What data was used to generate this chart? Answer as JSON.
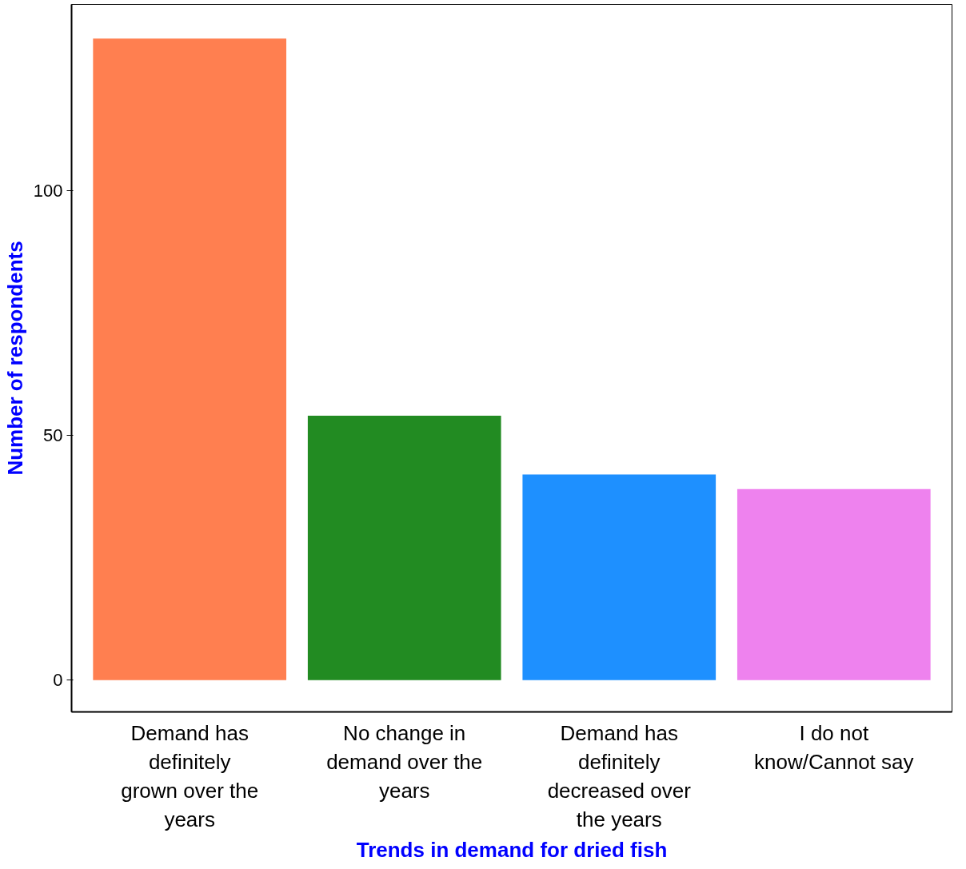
{
  "chart_data": {
    "type": "bar",
    "xlabel": "Trends in demand for dried fish",
    "ylabel": "Number of respondents",
    "categories": [
      "Demand has definitely grown over the years",
      "No change in demand over the years",
      "Demand has definitely decreased over the years",
      "I do not know/Cannot say"
    ],
    "values": [
      131,
      54,
      42,
      39
    ],
    "colors": [
      "#ff7f50",
      "#228b22",
      "#1e90ff",
      "#ee82ee"
    ],
    "ylim": [
      -6.5,
      138
    ],
    "yticks": [
      0,
      50,
      100
    ],
    "grid": false
  }
}
